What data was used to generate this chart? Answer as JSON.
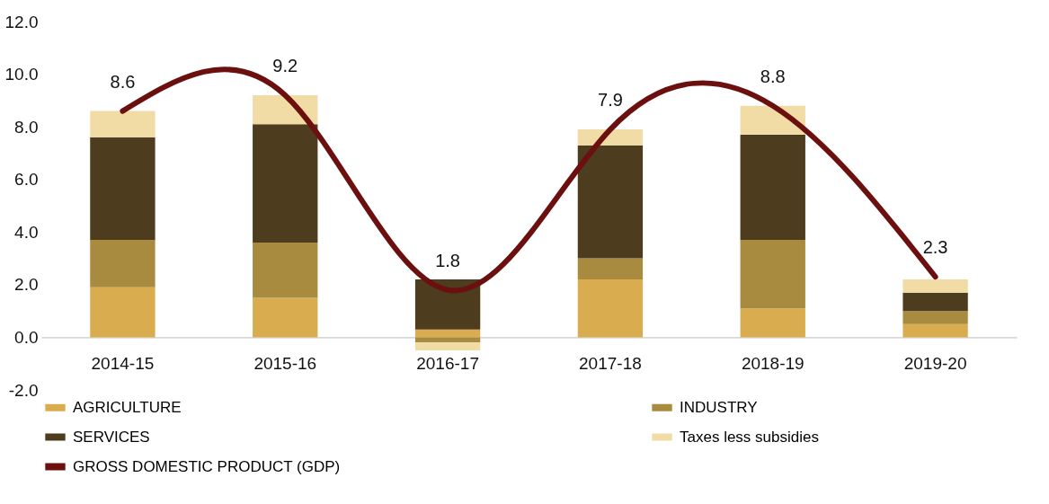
{
  "chart_data": {
    "type": "bar",
    "stacked": true,
    "categories": [
      "2014-15",
      "2015-16",
      "2016-17",
      "2017-18",
      "2018-19",
      "2019-20"
    ],
    "series": [
      {
        "name": "AGRICULTURE",
        "color": "#d9ad4f",
        "values": [
          1.9,
          1.5,
          0.3,
          2.2,
          1.1,
          0.5
        ]
      },
      {
        "name": "INDUSTRY",
        "color": "#a88b3e",
        "values": [
          1.8,
          2.1,
          -0.2,
          0.8,
          2.6,
          0.5
        ]
      },
      {
        "name": "SERVICES",
        "color": "#4e3c1e",
        "values": [
          3.9,
          4.5,
          1.9,
          4.3,
          4.0,
          0.7
        ]
      },
      {
        "name": "Taxes less subsidies",
        "color": "#f2dca6",
        "values": [
          1.0,
          1.1,
          -0.3,
          0.6,
          1.1,
          0.5
        ]
      },
      {
        "name": "GROSS DOMESTIC PRODUCT (GDP)",
        "type": "line",
        "color": "#6b0f0f",
        "values": [
          8.6,
          9.2,
          1.8,
          7.9,
          8.8,
          2.3
        ],
        "data_labels": true
      }
    ],
    "ylim": [
      -2,
      12
    ],
    "yticks": [
      {
        "value": -2,
        "label": "-2.0"
      },
      {
        "value": 0,
        "label": "0.0"
      },
      {
        "value": 2,
        "label": "2.0"
      },
      {
        "value": 4,
        "label": "4.0"
      },
      {
        "value": 6,
        "label": "6.0"
      },
      {
        "value": 8,
        "label": "8.0"
      },
      {
        "value": 10,
        "label": "10.0"
      },
      {
        "value": 12,
        "label": "12.0"
      }
    ],
    "grid": false,
    "legend": "bottom"
  }
}
